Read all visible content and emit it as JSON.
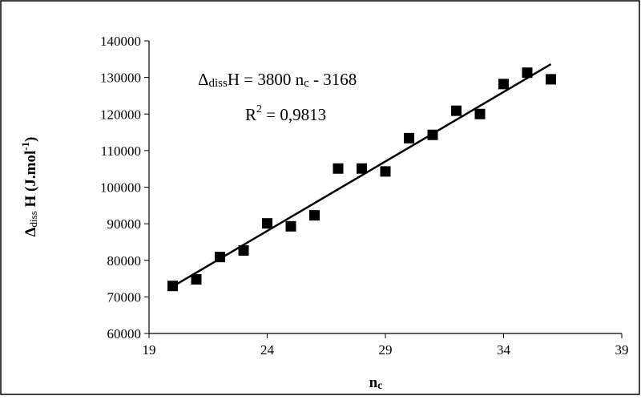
{
  "chart_data": {
    "type": "scatter",
    "title": "",
    "xlabel": "n",
    "xlabel_sub": "c",
    "ylabel_prefix": "Δ",
    "ylabel_sub": "diss",
    "ylabel_main": " H (J.mol",
    "ylabel_sup": "-1",
    "ylabel_end": ")",
    "xlim": [
      19,
      39
    ],
    "ylim": [
      60000,
      140000
    ],
    "x_ticks": [
      19,
      24,
      29,
      34,
      39
    ],
    "y_ticks": [
      60000,
      70000,
      80000,
      90000,
      100000,
      110000,
      120000,
      130000,
      140000
    ],
    "grid": false,
    "legend": "none",
    "marker_color": "#000000",
    "series": [
      {
        "x": [
          20,
          21,
          22,
          23,
          24,
          25,
          26,
          27,
          28,
          29,
          30,
          31,
          32,
          33,
          34,
          35,
          36
        ],
        "y": [
          73000,
          74800,
          80900,
          82700,
          90100,
          89300,
          92300,
          105100,
          105100,
          104300,
          113400,
          114300,
          120900,
          120000,
          128200,
          131300,
          129500
        ]
      }
    ],
    "trendline": {
      "x_start": 20,
      "x_end": 36,
      "slope": 3800,
      "intercept": -3168,
      "color": "#000000"
    },
    "annotations": {
      "equation": {
        "delta": "Δ",
        "sub": "diss",
        "main": "H = 3800 n",
        "sub2": "c",
        "tail": " - 3168"
      },
      "r2": {
        "prefix": "R",
        "sup": "2",
        "tail": " = 0,9813"
      }
    }
  }
}
